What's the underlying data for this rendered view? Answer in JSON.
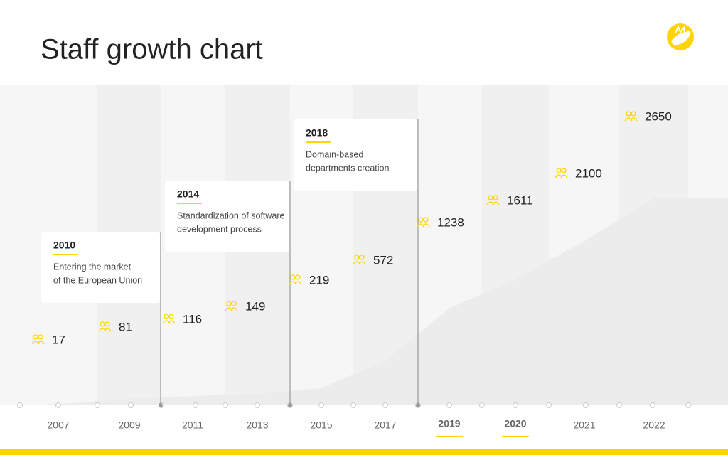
{
  "chart_data": {
    "type": "area",
    "title": "Staff growth chart",
    "categories": [
      "2007",
      "2009",
      "2011",
      "2013",
      "2015",
      "2017",
      "2019",
      "2020",
      "2021",
      "2022"
    ],
    "values": [
      17,
      81,
      116,
      149,
      219,
      572,
      1238,
      1611,
      2100,
      2650
    ],
    "ylim": [
      0,
      4000
    ],
    "color": "#ffd500",
    "highlight": [
      6,
      7
    ],
    "events": [
      {
        "year": "2010",
        "lines": [
          "Entering the market",
          "of the European Union"
        ]
      },
      {
        "year": "2014",
        "lines": [
          "Standardization of software",
          "development process"
        ]
      },
      {
        "year": "2018",
        "lines": [
          "Domain-based",
          "departments creation"
        ]
      }
    ]
  }
}
